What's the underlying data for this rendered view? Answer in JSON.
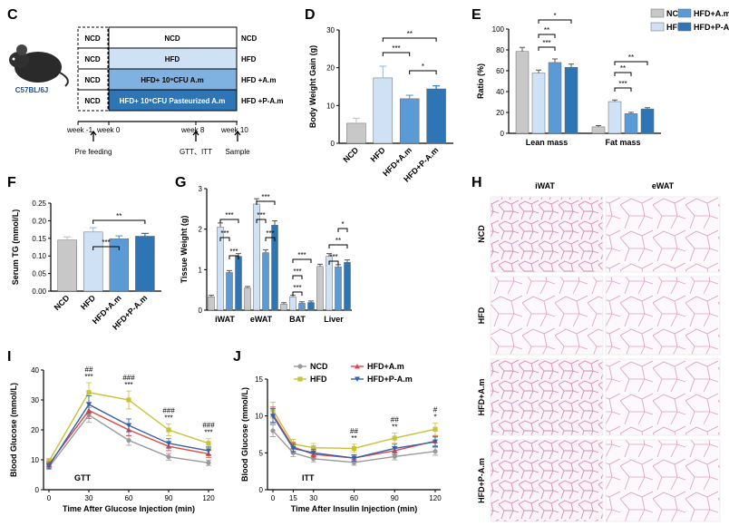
{
  "panel_labels": {
    "C": "C",
    "D": "D",
    "E": "E",
    "F": "F",
    "G": "G",
    "H": "H",
    "I": "I",
    "J": "J"
  },
  "colors": {
    "NCD": "#c8c8c8",
    "HFD": "#cfe2f5",
    "HFD_Am": "#5b9bd5",
    "HFD_PAm": "#2e75b6",
    "HFD_line": "#c8c13a",
    "Am_line": "#e04848",
    "PAm_line": "#3264a8",
    "NCD_line": "#9a9a9a"
  },
  "schematic": {
    "mouse_label": "C57BL/6J",
    "rows": [
      {
        "left": "NCD",
        "main": "NCD",
        "right": "NCD"
      },
      {
        "left": "NCD",
        "main": "HFD",
        "right": "HFD"
      },
      {
        "left": "NCD",
        "main": "HFD+ 10⁹CFU A.m",
        "right": "HFD +A.m"
      },
      {
        "left": "NCD",
        "main": "HFD+ 10⁹CFU Pasteurized A.m",
        "right": "HFD +P-A.m"
      }
    ],
    "timeline": [
      "week -1",
      "week 0",
      "week 8",
      "week 10"
    ],
    "events": [
      "Pre feeding",
      "GTT、ITT",
      "Sample"
    ]
  },
  "chart_data": [
    {
      "id": "D",
      "type": "bar",
      "ylabel": "Body Weight Gain (g)",
      "ylim": [
        0,
        30
      ],
      "yticks": [
        "0",
        "10",
        "20",
        "30"
      ],
      "categories": [
        "NCD",
        "HFD",
        "HFD+A.m",
        "HFD+P-A.m"
      ],
      "values": [
        5.3,
        17.3,
        11.8,
        14.4
      ],
      "errors": [
        1.3,
        3.1,
        0.9,
        0.8
      ],
      "significance": [
        "**",
        "***",
        "*"
      ]
    },
    {
      "id": "E",
      "type": "bar",
      "ylabel": "Ratio (%)",
      "ylim": [
        0,
        100
      ],
      "yticks": [
        "0",
        "20",
        "40",
        "60",
        "80",
        "100"
      ],
      "categories": [
        "Lean mass",
        "Fat mass"
      ],
      "series": [
        {
          "name": "NCD",
          "values": [
            78.5,
            6.2
          ]
        },
        {
          "name": "HFD",
          "values": [
            57.8,
            30.4
          ]
        },
        {
          "name": "HFD+A.m",
          "values": [
            67.9,
            18.9
          ]
        },
        {
          "name": "HFD+P-A.m",
          "values": [
            63.3,
            23.4
          ]
        }
      ],
      "significance": [
        "*",
        "**",
        "***",
        "**",
        "**",
        "***"
      ],
      "legend": [
        "NCD",
        "HFD",
        "HFD+A.m",
        "HFD+P-A.m"
      ]
    },
    {
      "id": "F",
      "type": "bar",
      "ylabel": "Serum TG (mmol/L)",
      "ylim": [
        0,
        0.25
      ],
      "yticks": [
        "0.00",
        "0.05",
        "0.10",
        "0.15",
        "0.20",
        "0.25"
      ],
      "categories": [
        "NCD",
        "HFD",
        "HFD+A.m",
        "HFD+P-A.m"
      ],
      "values": [
        0.145,
        0.168,
        0.149,
        0.156
      ],
      "errors": [
        0.009,
        0.012,
        0.008,
        0.008
      ],
      "significance": [
        "**",
        "***"
      ]
    },
    {
      "id": "G",
      "type": "bar",
      "ylabel": "Tissue Weight (g)",
      "ylim": [
        0,
        3
      ],
      "yticks": [
        "0",
        "1",
        "2",
        "3"
      ],
      "categories": [
        "iWAT",
        "eWAT",
        "BAT",
        "Liver"
      ],
      "series": [
        {
          "name": "NCD",
          "values": [
            0.33,
            0.55,
            0.15,
            1.08
          ]
        },
        {
          "name": "HFD",
          "values": [
            2.05,
            2.62,
            0.33,
            1.33
          ]
        },
        {
          "name": "HFD+A.m",
          "values": [
            0.93,
            1.42,
            0.17,
            1.07
          ]
        },
        {
          "name": "HFD+P-A.m",
          "values": [
            1.33,
            2.1,
            0.19,
            1.18
          ]
        }
      ],
      "significance": [
        "***",
        "***",
        "***",
        "***",
        "***",
        "***",
        "***",
        "***",
        "***",
        "*",
        "**",
        "***"
      ]
    },
    {
      "id": "I",
      "type": "line",
      "title": "GTT",
      "xlabel": "Time After Glucose Injection (min)",
      "ylabel": "Blood Glucose (mmol/L)",
      "x": [
        0,
        30,
        60,
        90,
        120
      ],
      "xticks": [
        "0",
        "30",
        "60",
        "90",
        "120"
      ],
      "ylim": [
        0,
        40
      ],
      "yticks": [
        "0",
        "10",
        "20",
        "30",
        "40"
      ],
      "series": [
        {
          "name": "NCD",
          "values": [
            7.5,
            25.0,
            16.5,
            11.0,
            9.0
          ]
        },
        {
          "name": "HFD",
          "values": [
            9.5,
            32.5,
            30.0,
            20.0,
            15.5
          ]
        },
        {
          "name": "HFD+A.m",
          "values": [
            8.5,
            26.5,
            20.0,
            14.5,
            12.0
          ]
        },
        {
          "name": "HFD+P-A.m",
          "values": [
            8.0,
            28.5,
            21.5,
            15.5,
            13.0
          ]
        }
      ],
      "annotations": [
        {
          "x": 30,
          "hash": "##",
          "star": "***"
        },
        {
          "x": 60,
          "hash": "###",
          "star": "***"
        },
        {
          "x": 90,
          "hash": "###",
          "star": "***"
        },
        {
          "x": 120,
          "hash": "###",
          "star": "***"
        }
      ]
    },
    {
      "id": "J",
      "type": "line",
      "title": "ITT",
      "xlabel": "Time After Insulin Injection (min)",
      "ylabel": "Blood Glucose (mmol/L)",
      "x": [
        0,
        15,
        30,
        60,
        90,
        120
      ],
      "xticks": [
        "0",
        "15",
        "30",
        "60",
        "90",
        "120"
      ],
      "ylim": [
        0,
        15
      ],
      "yticks": [
        "0",
        "5",
        "10",
        "15"
      ],
      "series": [
        {
          "name": "NCD",
          "values": [
            8.0,
            5.0,
            4.2,
            3.7,
            4.5,
            5.2
          ]
        },
        {
          "name": "HFD",
          "values": [
            10.8,
            6.2,
            5.7,
            5.6,
            7.0,
            8.2
          ]
        },
        {
          "name": "HFD+A.m",
          "values": [
            10.2,
            5.8,
            4.8,
            4.3,
            5.3,
            6.6
          ]
        },
        {
          "name": "HFD+P-A.m",
          "values": [
            10.0,
            5.6,
            5.0,
            4.3,
            5.6,
            6.5
          ]
        }
      ],
      "legend": [
        "NCD",
        "HFD",
        "HFD+A.m",
        "HFD+P-A.m"
      ],
      "annotations": [
        {
          "x": 60,
          "hash": "##",
          "star": "**"
        },
        {
          "x": 90,
          "hash": "##",
          "star": "**"
        },
        {
          "x": 120,
          "hash": "#",
          "star": "*"
        }
      ]
    }
  ],
  "histology": {
    "columns": [
      "iWAT",
      "eWAT"
    ],
    "rows": [
      "NCD",
      "HFD",
      "HFD+A.m",
      "HFD+P-A.m"
    ]
  }
}
